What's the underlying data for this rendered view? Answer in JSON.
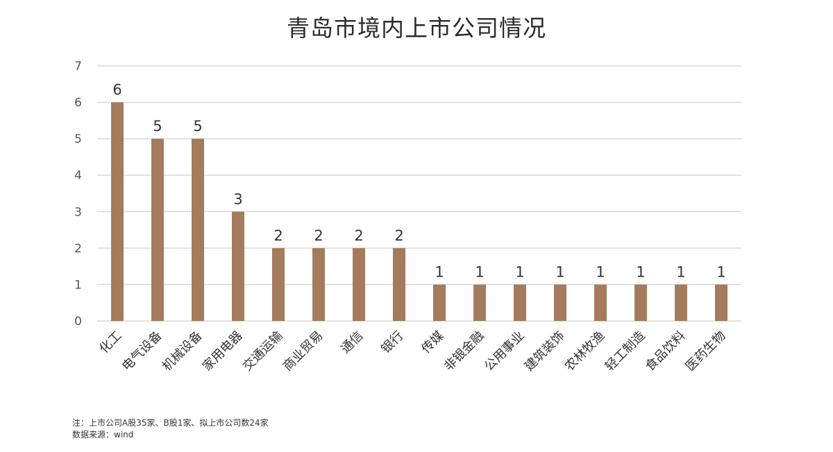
{
  "chart_data": {
    "type": "bar",
    "title": "青岛市境内上市公司情况",
    "categories": [
      "化工",
      "电气设备",
      "机械设备",
      "家用电器",
      "交通运输",
      "商业贸易",
      "通信",
      "银行",
      "传媒",
      "非银金融",
      "公用事业",
      "建筑装饰",
      "农林牧渔",
      "轻工制造",
      "食品饮料",
      "医药生物"
    ],
    "values": [
      6,
      5,
      5,
      3,
      2,
      2,
      2,
      2,
      1,
      1,
      1,
      1,
      1,
      1,
      1,
      1
    ],
    "ylim": [
      0,
      7
    ],
    "yticks": [
      0,
      1,
      2,
      3,
      4,
      5,
      6,
      7
    ],
    "xlabel": "",
    "ylabel": "",
    "grid": true,
    "bar_color": "#a57b5d",
    "grid_color": "#d9d9d9"
  },
  "notes": {
    "note": "注：上市公司A股35家、B股1家、拟上市公司数24家",
    "source": "数据来源：wind"
  }
}
